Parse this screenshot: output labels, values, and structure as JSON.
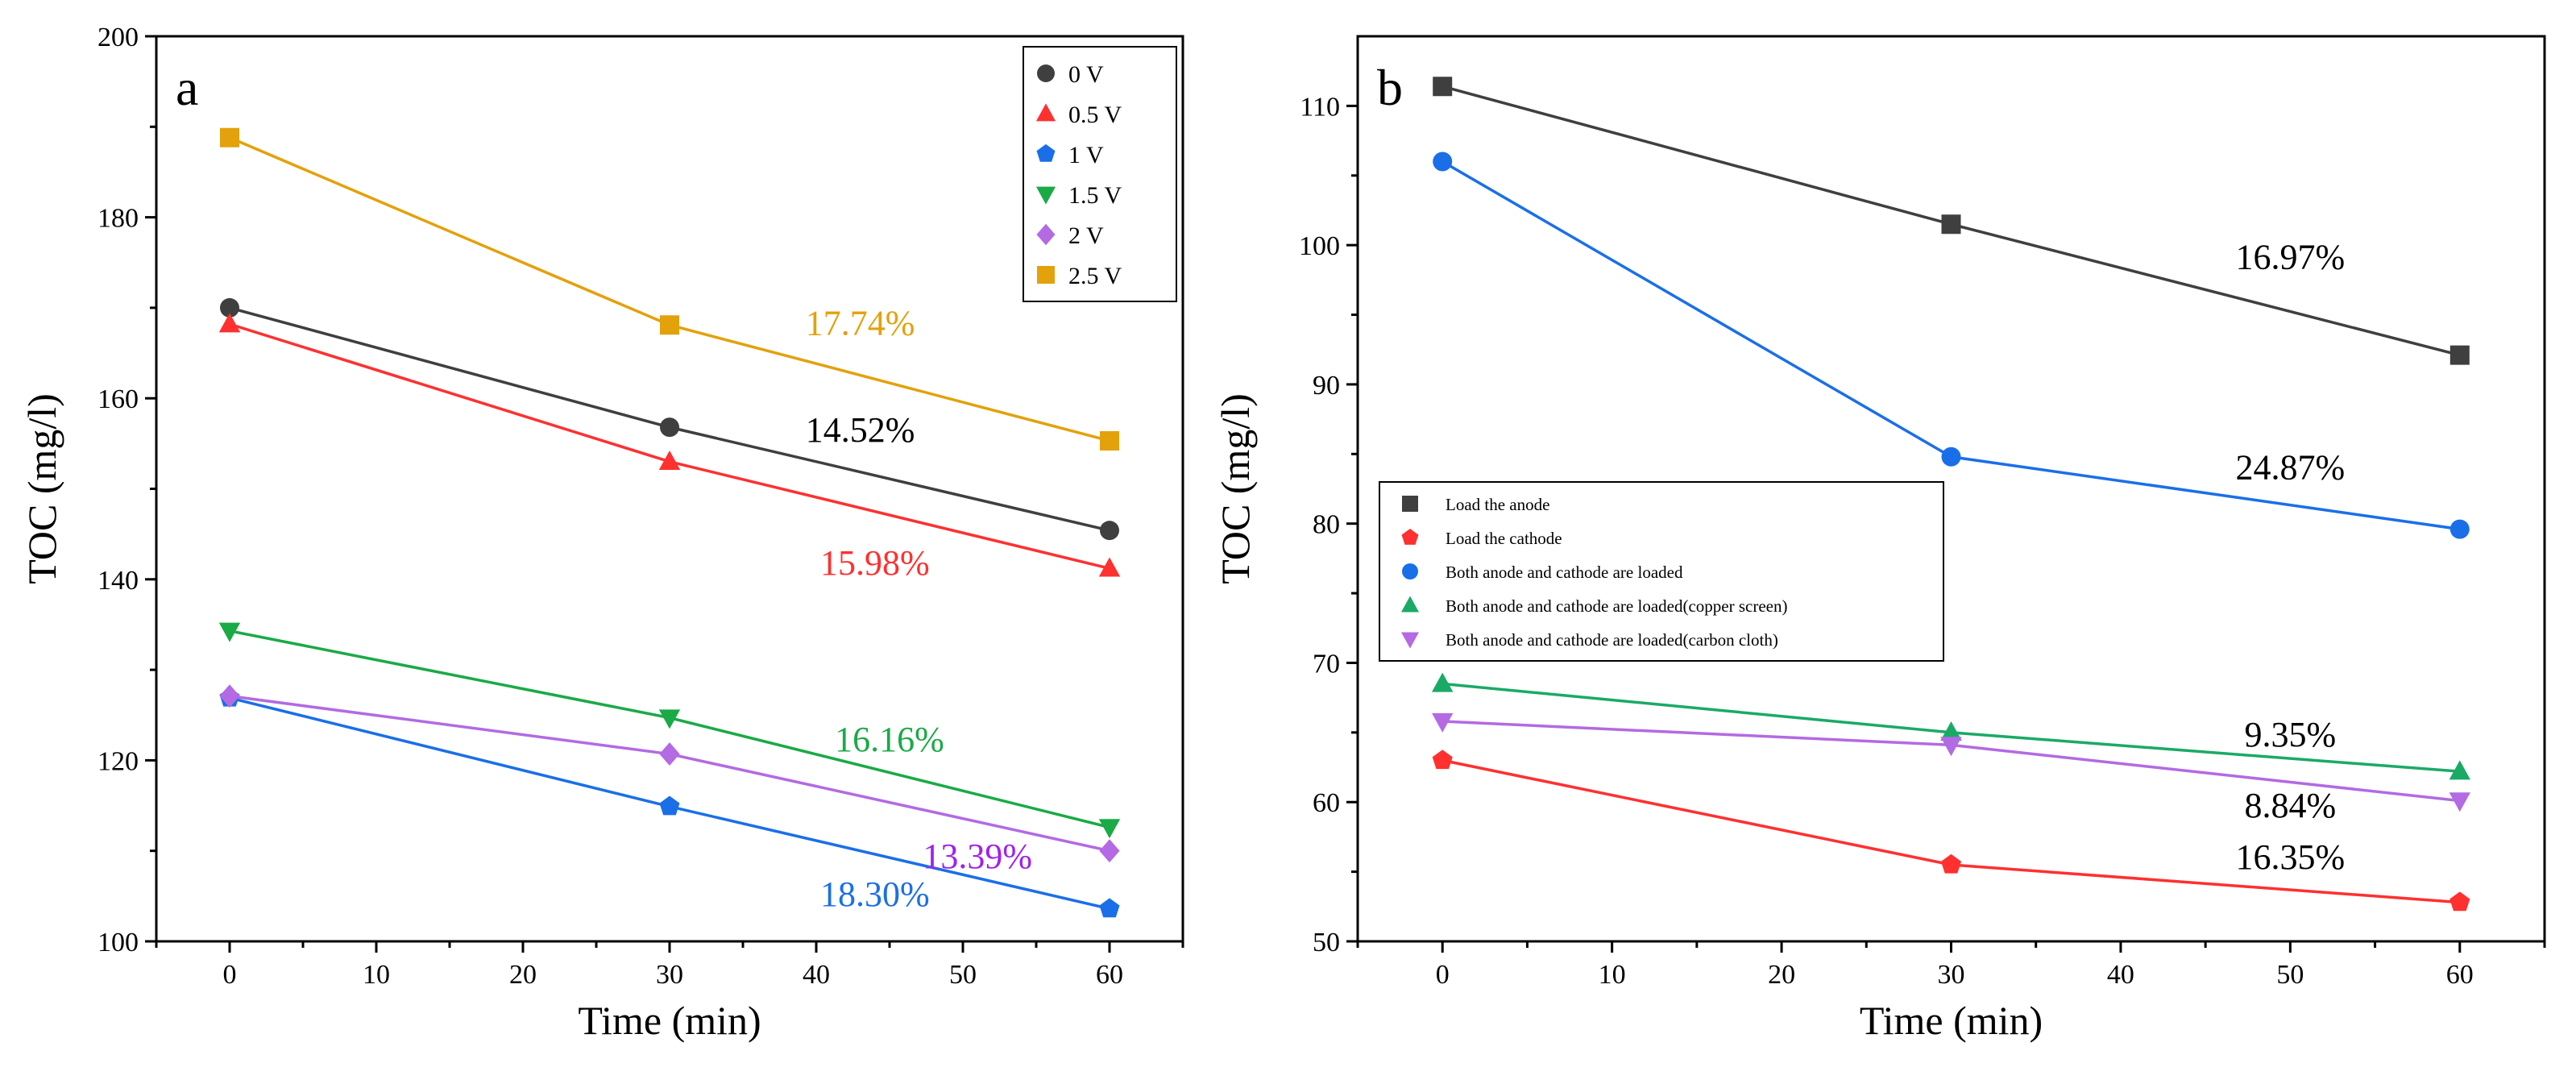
{
  "chart_data": [
    {
      "type": "line",
      "panel_label": "a",
      "xlabel": "Time (min)",
      "ylabel": "TOC (mg/l)",
      "xlim": [
        -5,
        65
      ],
      "ylim": [
        100,
        200
      ],
      "xticks": [
        0,
        10,
        20,
        30,
        40,
        50,
        60
      ],
      "yticks": [
        100,
        120,
        140,
        160,
        180,
        200
      ],
      "grid": false,
      "legend_position": "top-right",
      "x": [
        0,
        30,
        60
      ],
      "series": [
        {
          "name": "0 V",
          "values": [
            170.0,
            156.8,
            145.4
          ],
          "color": "#3f3f3f",
          "marker": "circle"
        },
        {
          "name": "0.5 V",
          "values": [
            168.2,
            153.0,
            141.2
          ],
          "color": "#ff3030",
          "marker": "triangle-up"
        },
        {
          "name": "1 V",
          "values": [
            126.9,
            114.9,
            103.6
          ],
          "color": "#1a6fe8",
          "marker": "pentagon"
        },
        {
          "name": "1.5 V",
          "values": [
            134.3,
            124.7,
            112.6
          ],
          "color": "#1aaa46",
          "marker": "triangle-down"
        },
        {
          "name": "2 V",
          "values": [
            127.1,
            120.7,
            110.0
          ],
          "color": "#b36ae2",
          "marker": "diamond"
        },
        {
          "name": "2.5 V",
          "values": [
            188.8,
            168.1,
            155.3
          ],
          "color": "#e3a10c",
          "marker": "square"
        }
      ],
      "annotations": [
        {
          "text": "17.74%",
          "x": 43,
          "y": 167.0,
          "color": "#e3a10c"
        },
        {
          "text": "14.52%",
          "x": 43,
          "y": 155.2,
          "color": "#000000"
        },
        {
          "text": "15.98%",
          "x": 44,
          "y": 140.5,
          "color": "#ff3030"
        },
        {
          "text": "16.16%",
          "x": 45,
          "y": 121.0,
          "color": "#1aaa46"
        },
        {
          "text": "13.39%",
          "x": 51,
          "y": 108.1,
          "color": "#a020f0"
        },
        {
          "text": "18.30%",
          "x": 44,
          "y": 103.9,
          "color": "#1a6fe8"
        }
      ]
    },
    {
      "type": "line",
      "panel_label": "b",
      "xlabel": "Time (min)",
      "ylabel": "TOC (mg/l)",
      "xlim": [
        -5,
        65
      ],
      "ylim": [
        50,
        115
      ],
      "xticks": [
        0,
        10,
        20,
        30,
        40,
        50,
        60
      ],
      "yticks": [
        50,
        60,
        70,
        80,
        90,
        100,
        110
      ],
      "grid": false,
      "legend_position": "center-left",
      "x": [
        0,
        30,
        60
      ],
      "series": [
        {
          "name": "Load the anode",
          "values": [
            111.4,
            101.5,
            92.1
          ],
          "color": "#3f3f3f",
          "marker": "square"
        },
        {
          "name": "Load the cathode",
          "values": [
            63.0,
            55.5,
            52.8
          ],
          "color": "#ff3030",
          "marker": "pentagon"
        },
        {
          "name": "Both anode and cathode are loaded",
          "values": [
            106.0,
            84.8,
            79.6
          ],
          "color": "#1a6fe8",
          "marker": "circle"
        },
        {
          "name": "Both anode and cathode are loaded(copper screen)",
          "values": [
            68.5,
            65.0,
            62.2
          ],
          "color": "#1aaa66",
          "marker": "triangle-up"
        },
        {
          "name": "Both anode and cathode are loaded(carbon cloth)",
          "values": [
            65.8,
            64.1,
            60.1
          ],
          "color": "#b36ae2",
          "marker": "triangle-down"
        }
      ],
      "annotations": [
        {
          "text": "16.97%",
          "x": 50,
          "y": 98.3,
          "color": "#000000"
        },
        {
          "text": "24.87%",
          "x": 50,
          "y": 83.2,
          "color": "#000000"
        },
        {
          "text": "9.35%",
          "x": 50,
          "y": 64.0,
          "color": "#000000"
        },
        {
          "text": "8.84%",
          "x": 50,
          "y": 58.9,
          "color": "#000000"
        },
        {
          "text": "16.35%",
          "x": 50,
          "y": 55.2,
          "color": "#000000"
        }
      ]
    }
  ]
}
